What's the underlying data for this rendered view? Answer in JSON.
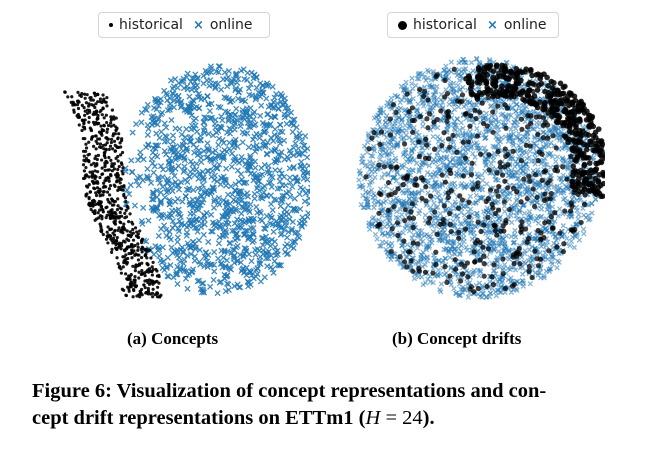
{
  "panels": [
    {
      "caption": "(a) Concepts",
      "legend": {
        "items": [
          {
            "label": "historical",
            "marker": "small-black-dot",
            "color": "#000000"
          },
          {
            "label": "online",
            "marker": "blue-x",
            "color": "#1f77b4"
          }
        ]
      }
    },
    {
      "caption": "(b) Concept drifts",
      "legend": {
        "items": [
          {
            "label": "historical",
            "marker": "black-dot",
            "color": "#000000"
          },
          {
            "label": "online",
            "marker": "blue-x",
            "color": "#1f77b4"
          }
        ]
      }
    }
  ],
  "figure_caption": {
    "line1": "Figure 6: Visualization of concept representations and con-",
    "line2_text": "cept drift representations on ETTm1 (",
    "line2_var": "H",
    "line2_eq": " = 24",
    "line2_end": ")."
  },
  "colors": {
    "historical": "#000000",
    "online": "#1f77b4"
  }
}
